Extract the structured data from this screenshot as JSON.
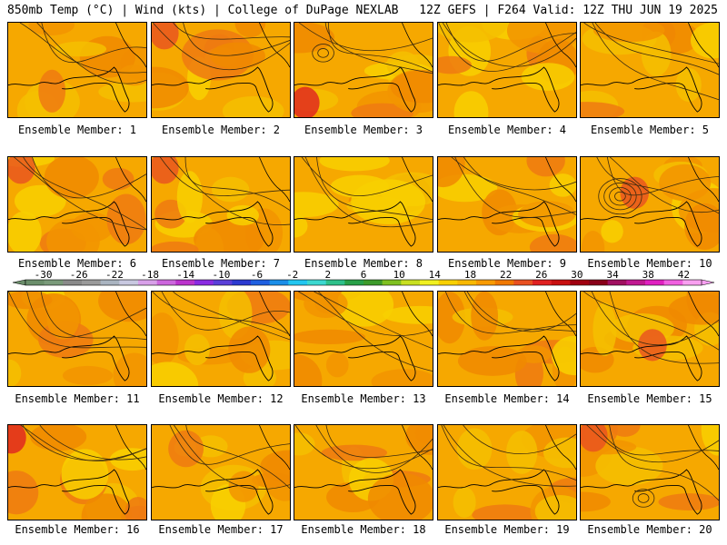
{
  "header": {
    "left": "850mb Temp (°C) | Wind (kts) | College of DuPage NEXLAB",
    "right": "12Z GEFS | F264 Valid: 12Z THU JUN 19 2025"
  },
  "colorbar": {
    "tick_labels": [
      "-30",
      "-26",
      "-22",
      "-18",
      "-14",
      "-10",
      "-6",
      "-2",
      "2",
      "6",
      "10",
      "14",
      "18",
      "22",
      "26",
      "30",
      "34",
      "38",
      "42"
    ],
    "tick_values": [
      -30,
      -26,
      -22,
      -18,
      -14,
      -10,
      -6,
      -2,
      2,
      6,
      10,
      14,
      18,
      22,
      26,
      30,
      34,
      38,
      42
    ],
    "bins": [
      "#6b8e6b",
      "#7a9a7a",
      "#8a8a8a",
      "#9a9a9a",
      "#aab4c0",
      "#c8c8e0",
      "#d8a0e8",
      "#cc66dd",
      "#bb33cc",
      "#8a2be2",
      "#5a3fd8",
      "#2c3ad0",
      "#1f5fe0",
      "#1b8ee8",
      "#22c6f0",
      "#3cd8d0",
      "#2ec08a",
      "#28a048",
      "#3c9a2a",
      "#7fc020",
      "#c8e020",
      "#f0f020",
      "#f8d000",
      "#f8b800",
      "#f89a00",
      "#f07800",
      "#e85020",
      "#e02020",
      "#c81010",
      "#a00010",
      "#880018",
      "#a01060",
      "#c01890",
      "#e020c0",
      "#f060e0",
      "#f8a0f0"
    ]
  },
  "panels": [
    {
      "label": "Ensemble Member: 1"
    },
    {
      "label": "Ensemble Member: 2"
    },
    {
      "label": "Ensemble Member: 3"
    },
    {
      "label": "Ensemble Member: 4"
    },
    {
      "label": "Ensemble Member: 5"
    },
    {
      "label": "Ensemble Member: 6"
    },
    {
      "label": "Ensemble Member: 7"
    },
    {
      "label": "Ensemble Member: 8"
    },
    {
      "label": "Ensemble Member: 9"
    },
    {
      "label": "Ensemble Member: 10"
    },
    {
      "label": "Ensemble Member: 11"
    },
    {
      "label": "Ensemble Member: 12"
    },
    {
      "label": "Ensemble Member: 13"
    },
    {
      "label": "Ensemble Member: 14"
    },
    {
      "label": "Ensemble Member: 15"
    },
    {
      "label": "Ensemble Member: 16"
    },
    {
      "label": "Ensemble Member: 17"
    },
    {
      "label": "Ensemble Member: 18"
    },
    {
      "label": "Ensemble Member: 19"
    },
    {
      "label": "Ensemble Member: 20"
    }
  ],
  "chart_data": {
    "type": "heatmap",
    "variable": "850mb Temp (°C)",
    "members": 20,
    "color_range": [
      -30,
      42
    ],
    "dominant_range_per_member": [
      [
        18,
        26
      ],
      [
        18,
        26
      ],
      [
        18,
        30
      ],
      [
        18,
        26
      ],
      [
        14,
        22
      ],
      [
        18,
        26
      ],
      [
        18,
        26
      ],
      [
        18,
        22
      ],
      [
        14,
        26
      ],
      [
        18,
        30
      ],
      [
        18,
        26
      ],
      [
        18,
        26
      ],
      [
        14,
        22
      ],
      [
        18,
        26
      ],
      [
        18,
        26
      ],
      [
        18,
        30
      ],
      [
        18,
        26
      ],
      [
        18,
        26
      ],
      [
        14,
        22
      ],
      [
        18,
        26
      ]
    ]
  }
}
